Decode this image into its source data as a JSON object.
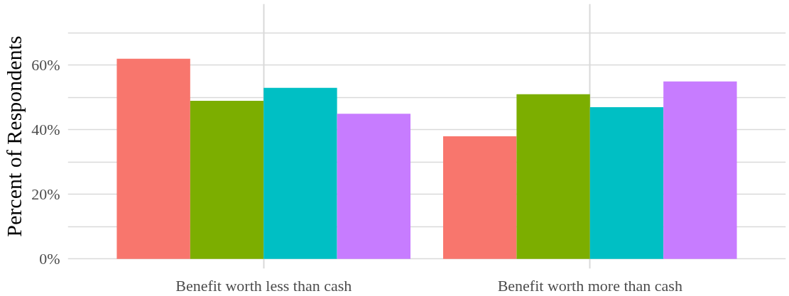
{
  "chart_data": {
    "type": "bar",
    "ylabel": "Percent of Respondents",
    "categories": [
      "Benefit worth less than cash",
      "Benefit worth more than cash"
    ],
    "series": [
      {
        "color": "#f8766d",
        "values": [
          62,
          38
        ]
      },
      {
        "color": "#7cae00",
        "values": [
          49,
          51
        ]
      },
      {
        "color": "#00bfc4",
        "values": [
          53,
          47
        ]
      },
      {
        "color": "#c77cff",
        "values": [
          45,
          55
        ]
      }
    ],
    "ylim": [
      -3,
      79
    ],
    "yticks": [
      {
        "value": 0,
        "label": "0%"
      },
      {
        "value": 10,
        "label": null
      },
      {
        "value": 20,
        "label": "20%"
      },
      {
        "value": 30,
        "label": null
      },
      {
        "value": 40,
        "label": "40%"
      },
      {
        "value": 50,
        "label": null
      },
      {
        "value": 60,
        "label": "60%"
      },
      {
        "value": 70,
        "label": null
      }
    ],
    "grid": true
  }
}
